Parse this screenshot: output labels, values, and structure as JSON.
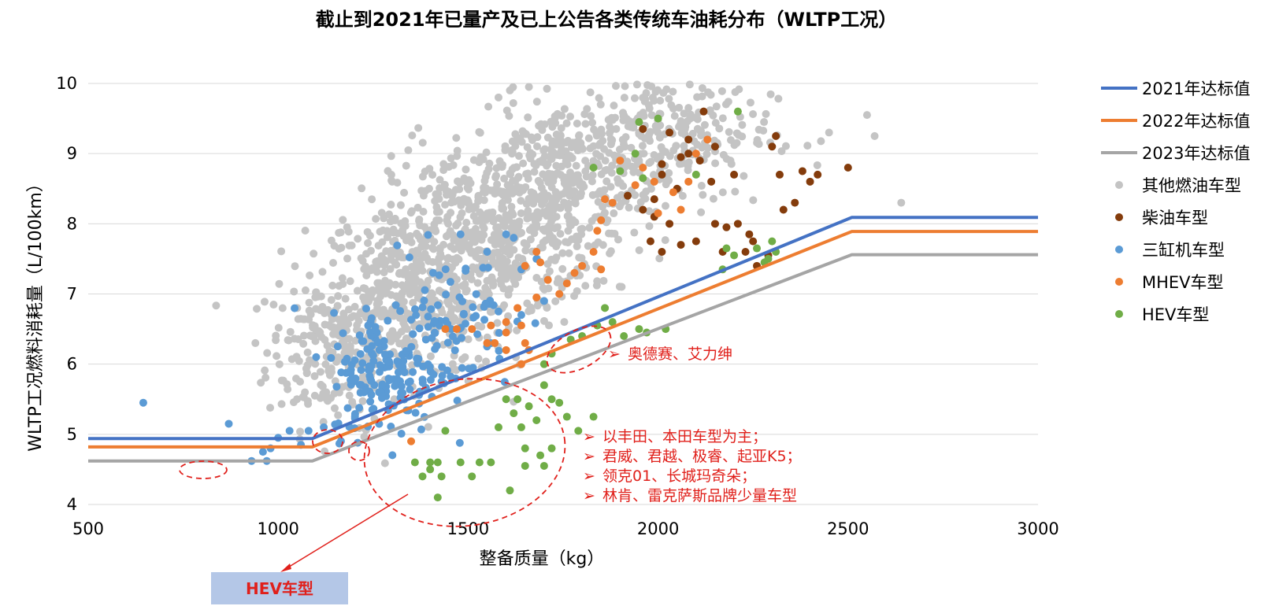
{
  "colors": {
    "line_2021": "#4472c4",
    "line_2022": "#ed7d31",
    "line_2023": "#a5a5a5",
    "other": "#c4c4c4",
    "diesel": "#843c0c",
    "three_cyl": "#5b9bd5",
    "mhev": "#ed7d31",
    "hev": "#70ad47",
    "annotation": "#e0201b",
    "hev_box": "#b4c7e7"
  },
  "annotations": {
    "note1": "奥德赛、艾力绅",
    "note2_lines": [
      "以丰田、本田车型为主；",
      "君威、君越、极睿、起亚K5；",
      "领克01、长城玛奇朵；",
      "林肯、雷克萨斯品牌少量车型"
    ],
    "bullet": "➢",
    "hev_box_label": "HEV车型"
  },
  "chart_data": {
    "type": "scatter",
    "title": "截止到2021年已量产及已上公告各类传统车油耗分布（WLTP工况）",
    "xlabel": "整备质量（kg）",
    "ylabel": "WLTP工况燃料消耗量（L/100km）",
    "xlim": [
      500,
      3000
    ],
    "ylim": [
      4,
      10
    ],
    "x_ticks": [
      500,
      1000,
      1500,
      2000,
      2500,
      3000
    ],
    "y_ticks": [
      4,
      5,
      6,
      7,
      8,
      9,
      10
    ],
    "grid": "horizontal",
    "legend_position": "right",
    "lines": [
      {
        "name": "2021年达标值",
        "color_key": "line_2021",
        "points": [
          [
            500,
            4.94
          ],
          [
            1090,
            4.94
          ],
          [
            2510,
            8.09
          ],
          [
            3000,
            8.09
          ]
        ]
      },
      {
        "name": "2022年达标值",
        "color_key": "line_2022",
        "points": [
          [
            500,
            4.82
          ],
          [
            1090,
            4.82
          ],
          [
            2510,
            7.89
          ],
          [
            3000,
            7.89
          ]
        ]
      },
      {
        "name": "2023年达标值",
        "color_key": "line_2023",
        "points": [
          [
            500,
            4.62
          ],
          [
            1090,
            4.62
          ],
          [
            2510,
            7.56
          ],
          [
            3000,
            7.56
          ]
        ]
      }
    ],
    "series": [
      {
        "name": "其他燃油车型",
        "color_key": "other",
        "clusters": [
          {
            "cx": 1150,
            "cy": 6.2,
            "sx": 90,
            "sy": 0.55,
            "n": 220
          },
          {
            "cx": 1350,
            "cy": 7.0,
            "sx": 120,
            "sy": 0.6,
            "n": 420
          },
          {
            "cx": 1560,
            "cy": 7.8,
            "sx": 130,
            "sy": 0.65,
            "n": 460
          },
          {
            "cx": 1760,
            "cy": 8.6,
            "sx": 130,
            "sy": 0.6,
            "n": 360
          },
          {
            "cx": 2000,
            "cy": 9.3,
            "sx": 150,
            "sy": 0.45,
            "n": 260
          }
        ],
        "points": [
          [
            2640,
            8.3
          ],
          [
            2570,
            9.25
          ],
          [
            2550,
            9.55
          ],
          [
            1050,
            6.8
          ],
          [
            940,
            6.3
          ],
          [
            1300,
            8.6
          ],
          [
            1660,
            9.95
          ],
          [
            1580,
            9.8
          ],
          [
            1610,
            9.9
          ],
          [
            2450,
            9.3
          ]
        ]
      },
      {
        "name": "柴油车型",
        "color_key": "diesel",
        "points": [
          [
            1960,
            9.35
          ],
          [
            2030,
            9.3
          ],
          [
            2080,
            9.2
          ],
          [
            2110,
            8.9
          ],
          [
            2120,
            9.6
          ],
          [
            2150,
            9.1
          ],
          [
            2140,
            8.6
          ],
          [
            2050,
            8.5
          ],
          [
            1990,
            8.35
          ],
          [
            1960,
            8.2
          ],
          [
            1980,
            7.75
          ],
          [
            2010,
            7.6
          ],
          [
            2060,
            7.7
          ],
          [
            2100,
            7.75
          ],
          [
            2150,
            8.0
          ],
          [
            2180,
            7.95
          ],
          [
            2210,
            8.0
          ],
          [
            2240,
            7.85
          ],
          [
            2170,
            7.6
          ],
          [
            2230,
            7.6
          ],
          [
            2260,
            7.4
          ],
          [
            2290,
            7.55
          ],
          [
            2330,
            8.2
          ],
          [
            2360,
            8.3
          ],
          [
            2320,
            8.7
          ],
          [
            2380,
            8.75
          ],
          [
            2400,
            8.6
          ],
          [
            2420,
            8.7
          ],
          [
            2500,
            8.8
          ],
          [
            2300,
            9.1
          ],
          [
            2310,
            9.25
          ],
          [
            2200,
            8.7
          ],
          [
            2060,
            8.95
          ],
          [
            2010,
            8.7
          ],
          [
            1920,
            8.4
          ],
          [
            2250,
            7.75
          ],
          [
            2010,
            8.85
          ],
          [
            1990,
            8.1
          ],
          [
            2080,
            9.0
          ],
          [
            2030,
            8.0
          ]
        ]
      },
      {
        "name": "三缸机车型",
        "color_key": "three_cyl",
        "clusters": [
          {
            "cx": 1280,
            "cy": 5.85,
            "sx": 70,
            "sy": 0.45,
            "n": 150
          },
          {
            "cx": 1440,
            "cy": 6.6,
            "sx": 90,
            "sy": 0.5,
            "n": 90
          }
        ],
        "points": [
          [
            645,
            5.45
          ],
          [
            870,
            5.15
          ],
          [
            960,
            4.75
          ],
          [
            970,
            4.62
          ],
          [
            930,
            4.62
          ],
          [
            980,
            4.8
          ],
          [
            1000,
            4.95
          ],
          [
            1030,
            5.05
          ],
          [
            1060,
            4.85
          ],
          [
            1080,
            5.05
          ],
          [
            1120,
            5.1
          ],
          [
            1100,
            6.1
          ],
          [
            1480,
            7.85
          ],
          [
            1600,
            7.85
          ],
          [
            1620,
            7.8
          ],
          [
            1550,
            7.6
          ],
          [
            1640,
            7.35
          ],
          [
            1700,
            6.9
          ],
          [
            1680,
            7.5
          ],
          [
            1580,
            6.75
          ]
        ]
      },
      {
        "name": "MHEV车型",
        "color_key": "mhev",
        "points": [
          [
            1350,
            4.9
          ],
          [
            1440,
            6.5
          ],
          [
            1470,
            6.5
          ],
          [
            1510,
            6.5
          ],
          [
            1550,
            6.3
          ],
          [
            1570,
            6.3
          ],
          [
            1600,
            6.2
          ],
          [
            1600,
            6.45
          ],
          [
            1630,
            6.8
          ],
          [
            1640,
            6.55
          ],
          [
            1650,
            6.3
          ],
          [
            1660,
            6.2
          ],
          [
            1640,
            6.0
          ],
          [
            1680,
            6.95
          ],
          [
            1710,
            7.2
          ],
          [
            1740,
            7.0
          ],
          [
            1760,
            7.15
          ],
          [
            1780,
            7.3
          ],
          [
            1800,
            7.4
          ],
          [
            1840,
            7.9
          ],
          [
            1830,
            7.6
          ],
          [
            1850,
            7.35
          ],
          [
            1860,
            8.35
          ],
          [
            1880,
            8.3
          ],
          [
            1900,
            8.9
          ],
          [
            1940,
            8.55
          ],
          [
            1960,
            8.8
          ],
          [
            1990,
            8.6
          ],
          [
            2000,
            8.15
          ],
          [
            2040,
            8.45
          ],
          [
            2060,
            8.2
          ],
          [
            2080,
            8.6
          ],
          [
            2100,
            9.0
          ],
          [
            2130,
            9.2
          ],
          [
            1850,
            8.05
          ],
          [
            1680,
            7.6
          ],
          [
            1690,
            7.45
          ],
          [
            1650,
            7.4
          ],
          [
            1600,
            6.6
          ],
          [
            1560,
            6.55
          ]
        ]
      },
      {
        "name": "HEV车型",
        "color_key": "hev",
        "points": [
          [
            1360,
            4.6
          ],
          [
            1380,
            4.4
          ],
          [
            1400,
            4.5
          ],
          [
            1420,
            4.6
          ],
          [
            1430,
            4.4
          ],
          [
            1400,
            4.6
          ],
          [
            1420,
            4.1
          ],
          [
            1440,
            5.05
          ],
          [
            1480,
            4.6
          ],
          [
            1510,
            4.4
          ],
          [
            1530,
            4.6
          ],
          [
            1560,
            4.6
          ],
          [
            1580,
            5.1
          ],
          [
            1600,
            5.5
          ],
          [
            1620,
            5.3
          ],
          [
            1630,
            5.5
          ],
          [
            1640,
            5.1
          ],
          [
            1650,
            4.8
          ],
          [
            1660,
            5.4
          ],
          [
            1680,
            5.2
          ],
          [
            1690,
            4.7
          ],
          [
            1700,
            5.7
          ],
          [
            1720,
            5.5
          ],
          [
            1740,
            5.45
          ],
          [
            1760,
            5.25
          ],
          [
            1790,
            5.05
          ],
          [
            1830,
            5.25
          ],
          [
            1700,
            4.55
          ],
          [
            1720,
            4.8
          ],
          [
            1610,
            4.2
          ],
          [
            1650,
            4.55
          ],
          [
            1700,
            6.0
          ],
          [
            1720,
            6.15
          ],
          [
            1770,
            6.35
          ],
          [
            1800,
            6.4
          ],
          [
            1840,
            6.55
          ],
          [
            1860,
            6.8
          ],
          [
            1880,
            6.6
          ],
          [
            1910,
            6.4
          ],
          [
            1950,
            6.5
          ],
          [
            1970,
            6.45
          ],
          [
            2020,
            6.5
          ],
          [
            2170,
            7.35
          ],
          [
            2200,
            7.55
          ],
          [
            2260,
            7.65
          ],
          [
            2290,
            7.5
          ],
          [
            2300,
            7.75
          ],
          [
            2280,
            7.45
          ],
          [
            2180,
            7.65
          ],
          [
            2310,
            7.6
          ],
          [
            1940,
            9.0
          ],
          [
            2000,
            9.5
          ],
          [
            2210,
            9.6
          ],
          [
            1830,
            8.8
          ],
          [
            2100,
            8.7
          ],
          [
            1950,
            9.45
          ],
          [
            1900,
            8.75
          ],
          [
            1960,
            8.65
          ]
        ]
      }
    ]
  }
}
